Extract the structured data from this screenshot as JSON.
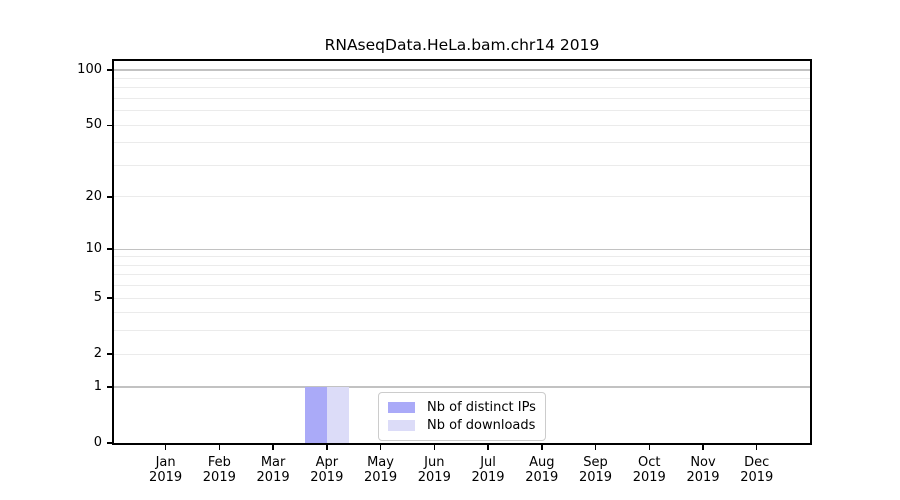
{
  "chart_data": {
    "type": "bar",
    "title": "RNAseqData.HeLa.bam.chr14 2019",
    "categories": [
      {
        "month": "Jan",
        "year": "2019"
      },
      {
        "month": "Feb",
        "year": "2019"
      },
      {
        "month": "Mar",
        "year": "2019"
      },
      {
        "month": "Apr",
        "year": "2019"
      },
      {
        "month": "May",
        "year": "2019"
      },
      {
        "month": "Jun",
        "year": "2019"
      },
      {
        "month": "Jul",
        "year": "2019"
      },
      {
        "month": "Aug",
        "year": "2019"
      },
      {
        "month": "Sep",
        "year": "2019"
      },
      {
        "month": "Oct",
        "year": "2019"
      },
      {
        "month": "Nov",
        "year": "2019"
      },
      {
        "month": "Dec",
        "year": "2019"
      }
    ],
    "series": [
      {
        "name": "Nb of distinct IPs",
        "color": "#aaaaf8",
        "values": [
          0,
          0,
          0,
          1,
          0,
          0,
          0,
          0,
          0,
          0,
          0,
          0
        ]
      },
      {
        "name": "Nb of downloads",
        "color": "#dcdcf8",
        "values": [
          0,
          0,
          0,
          1,
          0,
          0,
          0,
          0,
          0,
          0,
          0,
          0
        ]
      }
    ],
    "y_axis": {
      "scale": "log1p",
      "tick_values": [
        0,
        1,
        2,
        5,
        10,
        20,
        50,
        100
      ],
      "tick_labels": [
        "0",
        "1",
        "2",
        "5",
        "10",
        "20",
        "50",
        "100"
      ],
      "major_gridlines": [
        1,
        10,
        100
      ],
      "minor_gridlines": [
        2,
        3,
        4,
        5,
        6,
        7,
        8,
        9,
        20,
        30,
        40,
        50,
        60,
        70,
        80,
        90
      ],
      "ylim": [
        0,
        112
      ],
      "grid": true
    },
    "legend": {
      "position": "lower center",
      "entries": [
        "Nb of distinct IPs",
        "Nb of downloads"
      ]
    },
    "colors": {
      "major_grid": "#c2c2c2",
      "minor_grid": "#ebebeb",
      "spine": "#000000",
      "text": "#000000",
      "legend_border": "#cccccc"
    }
  }
}
